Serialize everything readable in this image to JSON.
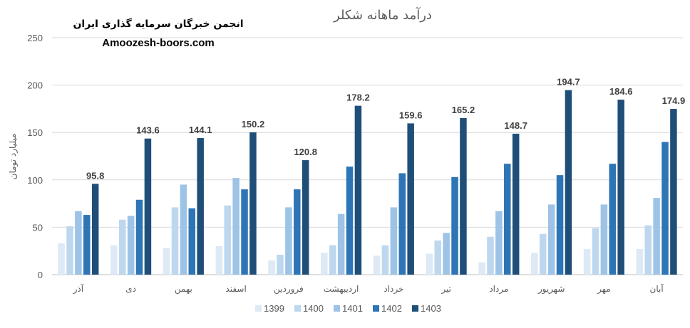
{
  "watermark": {
    "line1": "انجمن خبرگان سرمایه گذاری ایران",
    "line2": "Amoozesh-boors.com"
  },
  "chart_data": {
    "type": "bar",
    "title": "درآمد ماهانه شکلر",
    "ylabel": "میلیارد تومان",
    "xlabel": "",
    "ylim": [
      0,
      250
    ],
    "yticks": [
      0,
      50,
      100,
      150,
      200,
      250
    ],
    "grid": true,
    "legend_position": "bottom",
    "categories": [
      "آذر",
      "دی",
      "بهمن",
      "اسفند",
      "فروردین",
      "اردیبهشت",
      "خرداد",
      "تیر",
      "مرداد",
      "شهریور",
      "مهر",
      "آبان"
    ],
    "series": [
      {
        "name": "1399",
        "color": "#dde9f5",
        "values": [
          33,
          31,
          28,
          30,
          15,
          23,
          20,
          22,
          13,
          23,
          27,
          27
        ]
      },
      {
        "name": "1400",
        "color": "#bdd7ee",
        "values": [
          51,
          58,
          71,
          73,
          21,
          31,
          31,
          36,
          40,
          43,
          49,
          52
        ]
      },
      {
        "name": "1401",
        "color": "#9dc3e6",
        "values": [
          67,
          62,
          95,
          102,
          71,
          64,
          71,
          44,
          67,
          74,
          74,
          81
        ]
      },
      {
        "name": "1402",
        "color": "#2e75b6",
        "values": [
          63,
          79,
          70,
          90,
          90,
          114,
          107,
          103,
          117,
          105,
          117,
          140
        ]
      },
      {
        "name": "1403",
        "color": "#1f4e79",
        "values": [
          95.8,
          143.6,
          144.1,
          150.2,
          120.8,
          178.2,
          159.6,
          165.2,
          148.7,
          194.7,
          184.6,
          174.9
        ]
      }
    ],
    "data_labels": [
      "95.8",
      "143.6",
      "144.1",
      "150.2",
      "120.8",
      "178.2",
      "159.6",
      "165.2",
      "148.7",
      "194.7",
      "184.6",
      "174.9"
    ],
    "data_labels_series": "1403"
  }
}
